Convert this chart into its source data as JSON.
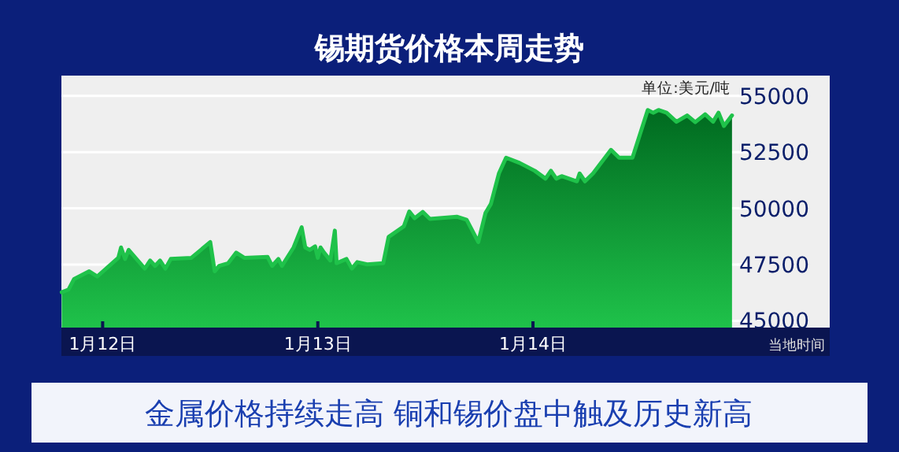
{
  "chart_data": {
    "type": "area",
    "title": "锡期货价格本周走势",
    "ylabel": "单位:美元/吨",
    "xlabel": "当地时间",
    "annotations": [
      "金属价格持续走高 铜和锡价盘中触及历史新高"
    ],
    "x": [
      "--01-11T19:26",
      "--01-11T20:12",
      "--01-11T20:48",
      "--01-11T22:30",
      "--01-11T23:24",
      "--01-12T01:45",
      "--01-12T02:03",
      "--01-12T02:30",
      "--01-12T02:54",
      "--01-12T04:42",
      "--01-12T05:18",
      "--01-12T05:51",
      "--01-12T06:24",
      "--01-12T07:00",
      "--01-12T07:36",
      "--01-12T09:54",
      "--01-12T12:00",
      "--01-12T12:30",
      "--01-12T13:00",
      "--01-12T14:00",
      "--01-12T14:54",
      "--01-12T15:48",
      "--01-12T18:24",
      "--01-12T18:54",
      "--01-12T19:36",
      "--01-12T20:00",
      "--01-12T21:18",
      "--01-12T22:12",
      "--01-12T22:36",
      "--01-12T23:06",
      "--01-12T23:42",
      "--01-13T00:00",
      "--01-13T00:18",
      "--01-13T00:42",
      "--01-13T01:24",
      "--01-13T01:54",
      "--01-13T02:06",
      "--01-13T03:12",
      "--01-13T03:48",
      "--01-13T04:24",
      "--01-13T05:30",
      "--01-13T07:18",
      "--01-13T07:54",
      "--01-13T09:36",
      "--01-13T10:12",
      "--01-13T10:48",
      "--01-13T11:42",
      "--01-13T12:30",
      "--01-13T15:30",
      "--01-13T16:36",
      "--01-13T17:54",
      "--01-13T18:42",
      "--01-13T19:18",
      "--01-13T20:12",
      "--01-13T21:00",
      "--01-13T22:30",
      "--01-14T00:12",
      "--01-14T01:24",
      "--01-14T02:00",
      "--01-14T02:36",
      "--01-14T03:12",
      "--01-14T04:54",
      "--01-14T05:12",
      "--01-14T05:48",
      "--01-14T06:42",
      "--01-14T08:42",
      "--01-14T09:36",
      "--01-14T11:06",
      "--01-14T12:48",
      "--01-14T13:24",
      "--01-14T14:00",
      "--01-14T14:54",
      "--01-14T16:00",
      "--01-14T17:12",
      "--01-14T18:06",
      "--01-14T19:12",
      "--01-14T20:06",
      "--01-14T20:42",
      "--01-14T21:18",
      "--01-14T22:12"
    ],
    "series": [
      {
        "color": "#1fc24a",
        "values": [
          46270,
          46390,
          46850,
          47200,
          46970,
          47800,
          48260,
          47750,
          48150,
          47320,
          47680,
          47440,
          47680,
          47320,
          47750,
          47800,
          48500,
          47200,
          47440,
          47560,
          48030,
          47800,
          47840,
          47440,
          47750,
          47440,
          48260,
          49160,
          48260,
          48150,
          48310,
          47800,
          48260,
          48030,
          47680,
          49010,
          47560,
          47750,
          47320,
          47610,
          47510,
          47560,
          48730,
          49200,
          49860,
          49560,
          49840,
          49530,
          49630,
          49490,
          48500,
          49790,
          50190,
          51550,
          52250,
          52020,
          51670,
          51320,
          51670,
          51320,
          51430,
          51200,
          51550,
          51200,
          51550,
          52600,
          52250,
          52250,
          54370,
          54250,
          54370,
          54250,
          53850,
          54130,
          53830,
          54180,
          53850,
          54250,
          53660,
          54130
        ]
      }
    ],
    "xlim": [
      "--01-11T19:24",
      "--01-15T09:06"
    ],
    "ylim": [
      44700,
      55900
    ],
    "xticks": [
      {
        "value": "--01-12",
        "label": "1月12日"
      },
      {
        "value": "--01-13",
        "label": "1月13日"
      },
      {
        "value": "--01-14",
        "label": "1月14日"
      }
    ],
    "yticks": [
      45000,
      47500,
      50000,
      52500,
      55000
    ],
    "grid": "y"
  }
}
